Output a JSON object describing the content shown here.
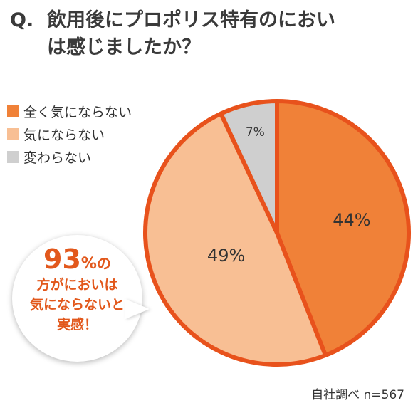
{
  "title": {
    "q": "Q.",
    "line1": "飲用後にプロポリス特有のにおい",
    "line2": "は感じましたか？"
  },
  "chart_data": {
    "type": "pie",
    "title": "Q. 飲用後にプロポリス特有のにおいは感じましたか？",
    "legend_position": "top-left",
    "categories": [
      "全く気にならない",
      "気にならない",
      "変わらない"
    ],
    "values": [
      44,
      49,
      7
    ],
    "labels": [
      "44%",
      "49%",
      "7%"
    ],
    "colors": [
      "#f08138",
      "#f8bf94",
      "#cfcfcf"
    ],
    "border_color": "#e8521c"
  },
  "callout": {
    "big": "93",
    "pct": "%",
    "no": "の",
    "lines": [
      "方がにおいは",
      "気にならないと",
      "実感！"
    ]
  },
  "source": "自社調べ n=567"
}
